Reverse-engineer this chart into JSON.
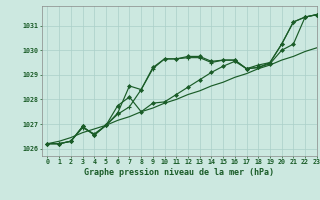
{
  "xlabel": "Graphe pression niveau de la mer (hPa)",
  "bg_color": "#cce8e0",
  "grid_color": "#aacfc8",
  "line_color": "#1a5c28",
  "ylim": [
    1025.7,
    1031.8
  ],
  "xlim": [
    -0.5,
    23
  ],
  "yticks": [
    1026,
    1027,
    1028,
    1029,
    1030,
    1031
  ],
  "xticks": [
    0,
    1,
    2,
    3,
    4,
    5,
    6,
    7,
    8,
    9,
    10,
    11,
    12,
    13,
    14,
    15,
    16,
    17,
    18,
    19,
    20,
    21,
    22,
    23
  ],
  "line_straight": [
    1026.2,
    1026.3,
    1026.45,
    1026.65,
    1026.8,
    1026.95,
    1027.15,
    1027.3,
    1027.5,
    1027.65,
    1027.85,
    1028.0,
    1028.2,
    1028.35,
    1028.55,
    1028.7,
    1028.9,
    1029.05,
    1029.25,
    1029.4,
    1029.6,
    1029.75,
    1029.95,
    1030.1
  ],
  "line_wavy_plus": [
    1026.2,
    1026.2,
    1026.3,
    1026.85,
    1026.6,
    1026.95,
    1027.4,
    1027.7,
    1028.4,
    1029.25,
    1029.65,
    1029.65,
    1029.7,
    1029.7,
    1029.5,
    1029.6,
    1029.6,
    1029.25,
    1029.4,
    1029.5,
    1030.25,
    1031.15,
    1031.35,
    1031.45
  ],
  "line_diamond1": [
    1026.2,
    1026.2,
    1026.3,
    1026.9,
    1026.55,
    1026.95,
    1027.45,
    1028.55,
    1028.4,
    1029.3,
    1029.65,
    1029.65,
    1029.75,
    1029.75,
    1029.55,
    1029.6,
    1029.6,
    1029.25,
    1029.3,
    1029.5,
    1030.25,
    1031.15,
    1031.35,
    1031.45
  ],
  "line_diamond2": [
    1026.2,
    1026.2,
    1026.3,
    1026.9,
    1026.55,
    1026.95,
    1027.75,
    1028.1,
    1027.5,
    1027.85,
    1027.9,
    1028.2,
    1028.5,
    1028.8,
    1029.1,
    1029.35,
    1029.55,
    1029.25,
    1029.3,
    1029.45,
    1030.0,
    1030.25,
    1031.35,
    1031.45
  ]
}
